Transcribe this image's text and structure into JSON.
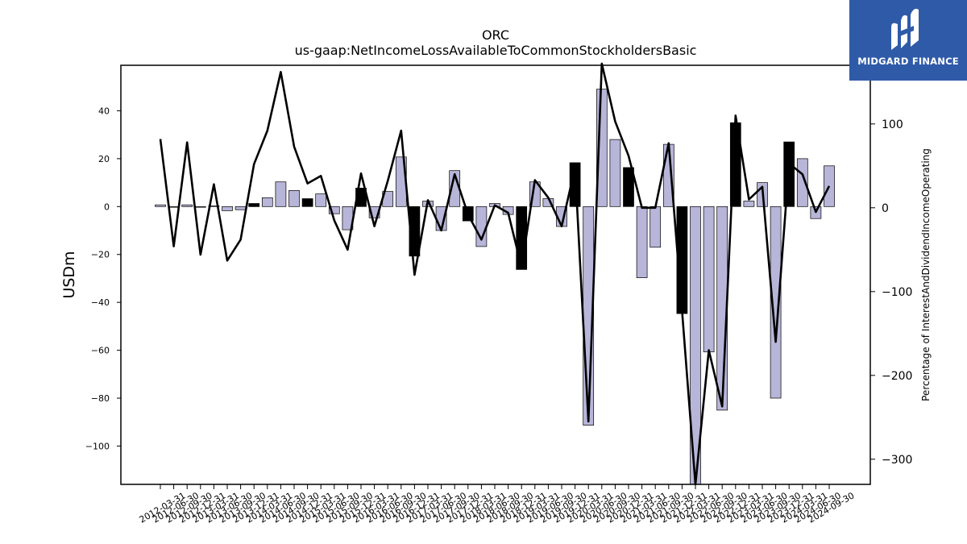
{
  "logo": {
    "text": "MIDGARD FINANCE",
    "bg_color": "#2f5aa8",
    "fg_color": "#ffffff"
  },
  "chart_data": {
    "type": "bar",
    "title": "ORC",
    "subtitle": "us-gaap:NetIncomeLossAvailableToCommonStockholdersBasic",
    "ylabel": "USDm",
    "ylabel_right": "Percentage of InterestAndDividendIncomeOperating",
    "ylim": [
      -116,
      59
    ],
    "ylim_right": [
      -330,
      170
    ],
    "yticks": [
      40,
      20,
      0,
      -20,
      -40,
      -60,
      -80,
      -100
    ],
    "yticks_right": [
      100,
      0,
      -100,
      -200,
      -300
    ],
    "bar_color": "#b7b5d8",
    "highlight_color": "#000000",
    "line_color": "#000000",
    "categories": [
      "2012-03-31",
      "2012-06-30",
      "2012-09-30",
      "2012-12-31",
      "2013-03-31",
      "2013-06-30",
      "2013-09-30",
      "2013-12-31",
      "2014-03-31",
      "2014-06-30",
      "2014-09-30",
      "2014-12-31",
      "2015-03-31",
      "2015-06-30",
      "2015-09-30",
      "2015-12-31",
      "2016-03-31",
      "2016-06-30",
      "2016-09-30",
      "2016-12-31",
      "2017-03-31",
      "2017-06-30",
      "2017-09-30",
      "2017-12-31",
      "2018-03-31",
      "2018-06-30",
      "2018-09-30",
      "2018-12-31",
      "2019-03-31",
      "2019-06-30",
      "2019-09-30",
      "2019-12-31",
      "2020-03-31",
      "2020-06-30",
      "2020-09-30",
      "2020-12-31",
      "2021-03-31",
      "2021-06-30",
      "2021-09-30",
      "2021-12-31",
      "2022-03-31",
      "2022-06-30",
      "2022-09-30",
      "2022-12-31",
      "2023-03-31",
      "2023-06-30",
      "2023-09-30",
      "2023-12-31",
      "2024-03-31",
      "2024-06-30",
      "2024-09-30"
    ],
    "tick_labels": [
      "2012-03-31",
      "2012-06-30",
      "2012-09-30",
      "2012-12-31",
      "2013-03-31",
      "2013-06-30",
      "2013-09-30",
      "2013-12-31",
      "2014-03-31",
      "2014-06-30",
      "2014-09-30",
      "2014-12-31",
      "2015-03-31",
      "2015-06-30",
      "2015-09-30",
      "2015-12-31",
      "2016-03-31",
      "2016-06-30",
      "2016-09-30",
      "2016-12-31",
      "2017-03-31",
      "2017-06-30",
      "2017-09-30",
      "2017-12-31",
      "2018-03-31",
      "2018-06-30",
      "2018-09-30",
      "2018-12-31",
      "2019-03-31",
      "2019-06-30",
      "2019-09-30",
      "2019-12-31",
      "2020-03-31",
      "2020-06-30",
      "2020-09-30",
      "2020-12-31",
      "2021-03-31",
      "2021-06-30",
      "2021-09-30",
      "2021-12-31",
      "2022-03-31",
      "2022-06-30",
      "2022-09-30",
      "2022-12-31",
      "2023-03-31",
      "2023-06-30",
      "2023-09-30",
      "2023-12-31",
      "2024-03-31",
      "2024-06-30",
      "2024-09-30"
    ],
    "series": [
      {
        "values": [
          0.7,
          -0.3,
          0.7,
          -0.3,
          0.3,
          -1.7,
          -1.3,
          1.3,
          3.7,
          10.3,
          6.7,
          3.3,
          5.3,
          -3.0,
          -9.7,
          7.7,
          -4.7,
          6.3,
          20.7,
          -20.7,
          2.3,
          -10.0,
          15.0,
          -6.0,
          -16.7,
          1.3,
          -3.3,
          -26.3,
          10.3,
          3.3,
          -8.3,
          18.3,
          -91.3,
          49.0,
          28.0,
          16.3,
          -29.7,
          -17.0,
          26.0,
          -44.7,
          -116.0,
          -60.7,
          -85.0,
          35.0,
          2.3,
          10.0,
          -80.0,
          27.0,
          20.0,
          -5.0,
          17.0
        ],
        "highlighted": [
          false,
          false,
          false,
          false,
          false,
          false,
          false,
          true,
          false,
          false,
          false,
          true,
          false,
          false,
          false,
          true,
          false,
          false,
          false,
          true,
          false,
          false,
          false,
          true,
          false,
          false,
          false,
          true,
          false,
          false,
          false,
          true,
          false,
          false,
          false,
          true,
          false,
          false,
          false,
          true,
          false,
          false,
          false,
          true,
          false,
          false,
          false,
          true,
          false,
          false,
          false
        ]
      },
      {
        "axis": "right",
        "type": "line",
        "values": [
          82,
          -46,
          78,
          -56,
          28,
          -63,
          -38,
          52,
          92,
          162,
          73,
          29,
          38,
          -15,
          -50,
          41,
          -22,
          32,
          92,
          -80,
          9,
          -27,
          40,
          -8,
          -38,
          3,
          -6,
          -71,
          33,
          12,
          -22,
          48,
          -255,
          172,
          103,
          62,
          0,
          0,
          77,
          -123,
          -330,
          -170,
          -237,
          110,
          10,
          25,
          -160,
          53,
          40,
          -5,
          26
        ]
      }
    ]
  }
}
